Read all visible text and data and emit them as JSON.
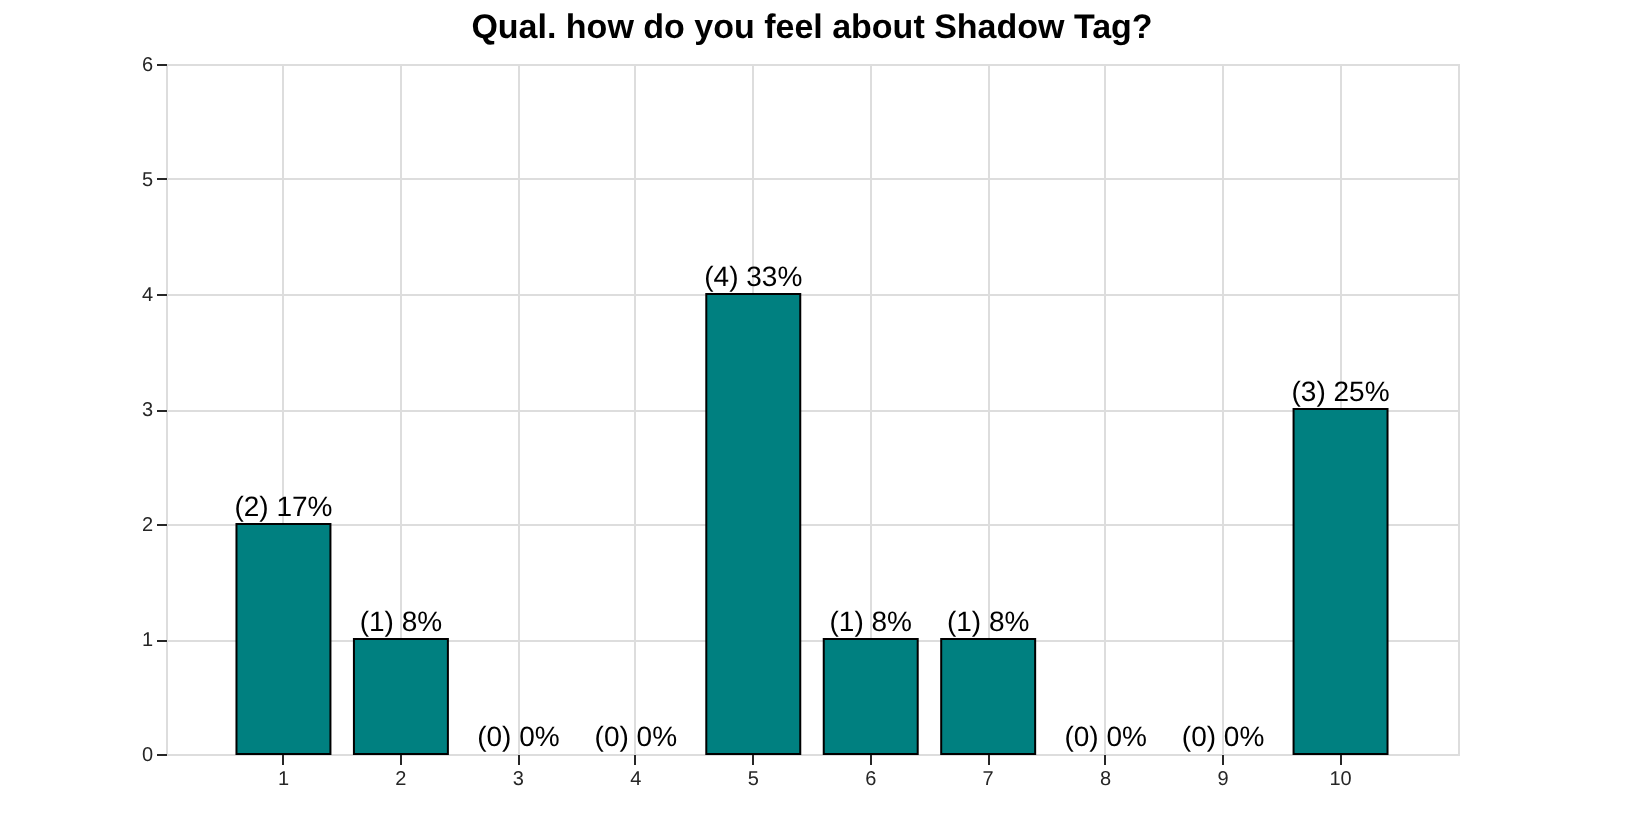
{
  "chart_data": {
    "type": "bar",
    "title": "Qual. how do you feel about Shadow Tag?",
    "categories": [
      "1",
      "2",
      "3",
      "4",
      "5",
      "6",
      "7",
      "8",
      "9",
      "10"
    ],
    "values": [
      2,
      1,
      0,
      0,
      4,
      1,
      1,
      0,
      0,
      3
    ],
    "value_labels": [
      "(2) 17%",
      "(1) 8%",
      "(0) 0%",
      "(0) 0%",
      "(4) 33%",
      "(1) 8%",
      "(1) 8%",
      "(0) 0%",
      "(0) 0%",
      "(3) 25%"
    ],
    "color": "#008080",
    "ylim": [
      0,
      6
    ],
    "yticks": [
      0,
      1,
      2,
      3,
      4,
      5,
      6
    ],
    "grid": true
  }
}
